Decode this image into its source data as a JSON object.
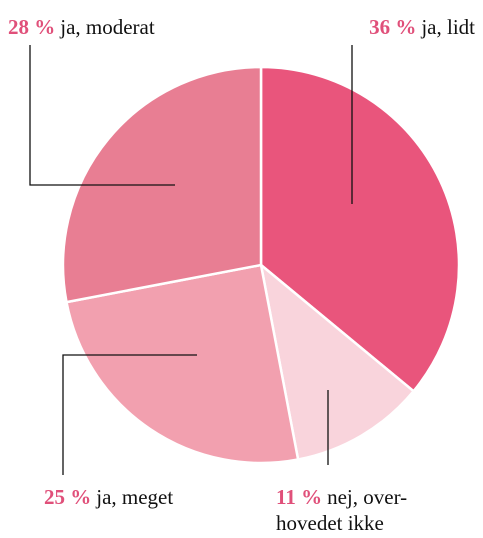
{
  "chart_data": {
    "type": "pie",
    "categories": [
      "ja, lidt",
      "nej, over-\nhovedet ikke",
      "ja, meget",
      "ja, moderat"
    ],
    "values": [
      36,
      11,
      25,
      28
    ],
    "value_labels": [
      "36 %",
      "11 %",
      "25 %",
      "28 %"
    ],
    "colors": [
      "#e9557c",
      "#f9d4dc",
      "#f2a0af",
      "#e87e93"
    ]
  }
}
